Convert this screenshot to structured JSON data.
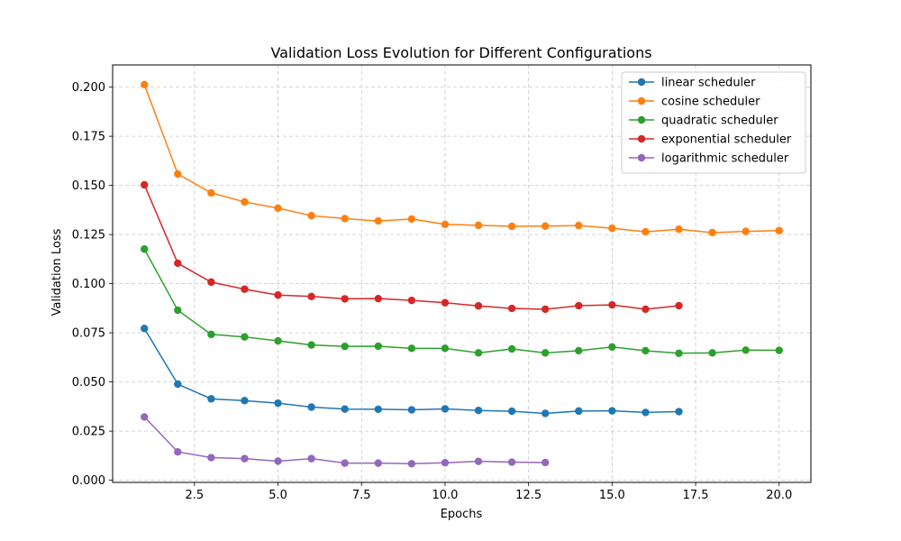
{
  "chart_data": {
    "type": "line",
    "title": "Validation Loss Evolution for Different Configurations",
    "xlabel": "Epochs",
    "ylabel": "Validation Loss",
    "xlim": [
      0.05,
      20.95
    ],
    "ylim": [
      -0.0011,
      0.2113
    ],
    "x_ticks": [
      2.5,
      5.0,
      7.5,
      10.0,
      12.5,
      15.0,
      17.5,
      20.0
    ],
    "x_tick_labels": [
      "2.5",
      "5.0",
      "7.5",
      "10.0",
      "12.5",
      "15.0",
      "17.5",
      "20.0"
    ],
    "y_ticks": [
      0.0,
      0.025,
      0.05,
      0.075,
      0.1,
      0.125,
      0.15,
      0.175,
      0.2
    ],
    "y_tick_labels": [
      "0.000",
      "0.025",
      "0.050",
      "0.075",
      "0.100",
      "0.125",
      "0.150",
      "0.175",
      "0.200"
    ],
    "grid": true,
    "legend_position": "top-right",
    "series": [
      {
        "name": "linear scheduler",
        "color": "#1f77b4",
        "x": [
          1,
          2,
          3,
          4,
          5,
          6,
          7,
          8,
          9,
          10,
          11,
          12,
          13,
          14,
          15,
          16,
          17
        ],
        "y": [
          0.0772,
          0.0489,
          0.0414,
          0.0405,
          0.0392,
          0.0372,
          0.0362,
          0.0361,
          0.0358,
          0.0363,
          0.0355,
          0.0351,
          0.034,
          0.0352,
          0.0353,
          0.0345,
          0.0349
        ]
      },
      {
        "name": "cosine scheduler",
        "color": "#ff7f0e",
        "x": [
          1,
          2,
          3,
          4,
          5,
          6,
          7,
          8,
          9,
          10,
          11,
          12,
          13,
          14,
          15,
          16,
          17,
          18,
          19,
          20
        ],
        "y": [
          0.2013,
          0.1558,
          0.1462,
          0.1416,
          0.1384,
          0.1346,
          0.1331,
          0.1319,
          0.1329,
          0.1302,
          0.1297,
          0.1292,
          0.1293,
          0.1296,
          0.1282,
          0.1264,
          0.1277,
          0.126,
          0.1266,
          0.127
        ]
      },
      {
        "name": "quadratic scheduler",
        "color": "#2ca02c",
        "x": [
          1,
          2,
          3,
          4,
          5,
          6,
          7,
          8,
          9,
          10,
          11,
          12,
          13,
          14,
          15,
          16,
          17,
          18,
          19,
          20
        ],
        "y": [
          0.1176,
          0.0865,
          0.0742,
          0.0729,
          0.0709,
          0.0688,
          0.0681,
          0.0682,
          0.0671,
          0.0671,
          0.0648,
          0.0668,
          0.0648,
          0.0659,
          0.0678,
          0.0659,
          0.0646,
          0.0648,
          0.0662,
          0.0661
        ]
      },
      {
        "name": "exponential scheduler",
        "color": "#d62728",
        "x": [
          1,
          2,
          3,
          4,
          5,
          6,
          7,
          8,
          9,
          10,
          11,
          12,
          13,
          14,
          15,
          16,
          17
        ],
        "y": [
          0.1503,
          0.1104,
          0.1008,
          0.0972,
          0.0942,
          0.0935,
          0.0923,
          0.0924,
          0.0915,
          0.0903,
          0.0887,
          0.0874,
          0.087,
          0.0888,
          0.0892,
          0.087,
          0.0888
        ]
      },
      {
        "name": "logarithmic scheduler",
        "color": "#9467bd",
        "x": [
          1,
          2,
          3,
          4,
          5,
          6,
          7,
          8,
          9,
          10,
          11,
          12,
          13
        ],
        "y": [
          0.0322,
          0.0144,
          0.0115,
          0.011,
          0.0097,
          0.011,
          0.0087,
          0.0087,
          0.0084,
          0.0089,
          0.0096,
          0.0092,
          0.009
        ]
      }
    ]
  }
}
